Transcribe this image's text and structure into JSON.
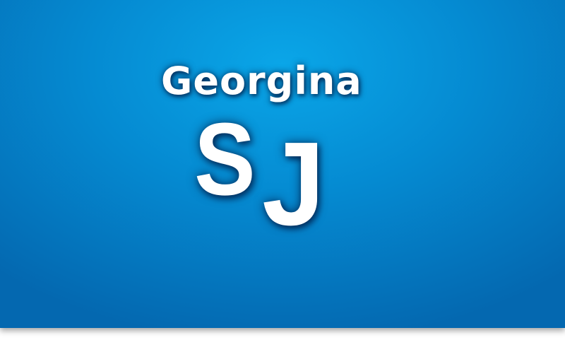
{
  "logo": {
    "name": "Georgina",
    "initial_1": "S",
    "initial_2": "J"
  },
  "colors": {
    "background_center": "#0aa6e8",
    "background_mid": "#058bd2",
    "background_edge": "#0468b0",
    "text": "#ffffff",
    "page": "#ffffff"
  }
}
